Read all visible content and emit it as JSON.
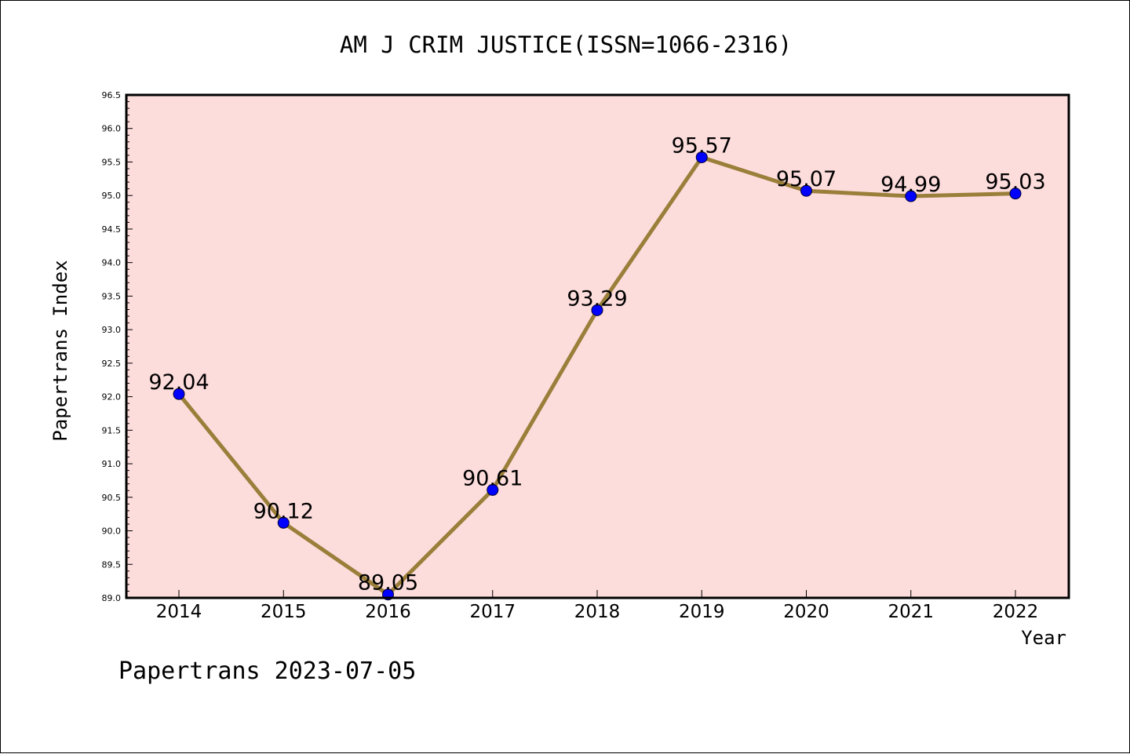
{
  "chart_data": {
    "type": "line",
    "title": "AM J CRIM JUSTICE(ISSN=1066-2316)",
    "xlabel": "Year",
    "ylabel": "Papertrans Index",
    "categories": [
      "2014",
      "2015",
      "2016",
      "2017",
      "2018",
      "2019",
      "2020",
      "2021",
      "2022"
    ],
    "values": [
      92.04,
      90.12,
      89.05,
      90.61,
      93.29,
      95.57,
      95.07,
      94.99,
      95.03
    ],
    "value_labels": [
      "92.04",
      "90.12",
      "89.05",
      "90.61",
      "93.29",
      "95.57",
      "95.07",
      "94.99",
      "95.03"
    ],
    "yticks": [
      "89.0",
      "89.5",
      "90.0",
      "90.5",
      "91.0",
      "91.5",
      "92.0",
      "92.5",
      "93.0",
      "93.5",
      "94.0",
      "94.5",
      "95.0",
      "95.5",
      "96.0",
      "96.5"
    ],
    "ylim": [
      89.0,
      96.5
    ],
    "grid": false,
    "legend": "none",
    "colors": {
      "plot_background": "#fddcdc",
      "line": "#9a7f3a",
      "marker": "#0000ff",
      "axes": "#000000"
    }
  },
  "footer": "Papertrans 2023-07-05"
}
